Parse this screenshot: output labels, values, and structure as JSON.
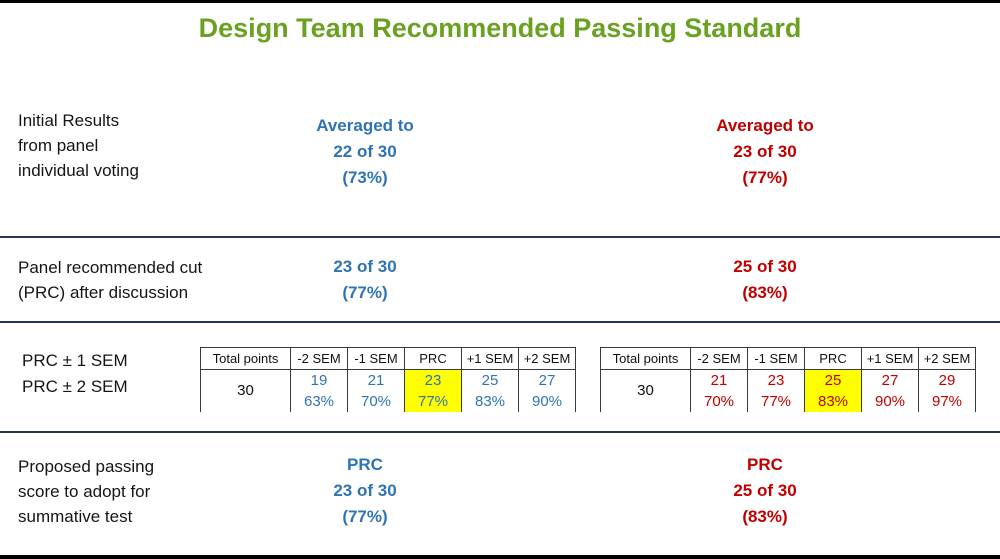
{
  "title": "Design Team Recommended Passing Standard",
  "colors": {
    "title": "#6AA121",
    "blue": "#2E74B5",
    "red": "#C00000",
    "highlight": "#FFFF00",
    "divider": "#24344E"
  },
  "sections": {
    "initial": {
      "label": "Initial Results\nfrom panel\nindividual voting",
      "blue": "Averaged to\n22 of 30\n(73%)",
      "red": "Averaged to\n23 of 30\n(77%)"
    },
    "prc": {
      "label": "Panel recommended cut\n(PRC) after discussion",
      "blue": "23 of 30\n(77%)",
      "red": "25 of 30\n(83%)"
    },
    "sem": {
      "label": "PRC ± 1 SEM\nPRC ± 2 SEM"
    },
    "proposed": {
      "label": "Proposed passing\nscore to adopt for\nsummative test",
      "blue": "PRC\n23 of 30\n(77%)",
      "red": "PRC\n25 of 30\n(83%)"
    }
  },
  "tables": {
    "left": {
      "headers": [
        "Total points",
        "-2 SEM",
        "-1 SEM",
        "PRC",
        "+1 SEM",
        "+2 SEM"
      ],
      "total_points": "30",
      "values": [
        "19",
        "21",
        "23",
        "25",
        "27"
      ],
      "percents": [
        "63%",
        "70%",
        "77%",
        "83%",
        "90%"
      ],
      "highlight_column": "PRC"
    },
    "right": {
      "headers": [
        "Total points",
        "-2 SEM",
        "-1 SEM",
        "PRC",
        "+1 SEM",
        "+2 SEM"
      ],
      "total_points": "30",
      "values": [
        "21",
        "23",
        "25",
        "27",
        "29"
      ],
      "percents": [
        "70%",
        "77%",
        "83%",
        "90%",
        "97%"
      ],
      "highlight_column": "PRC"
    }
  }
}
